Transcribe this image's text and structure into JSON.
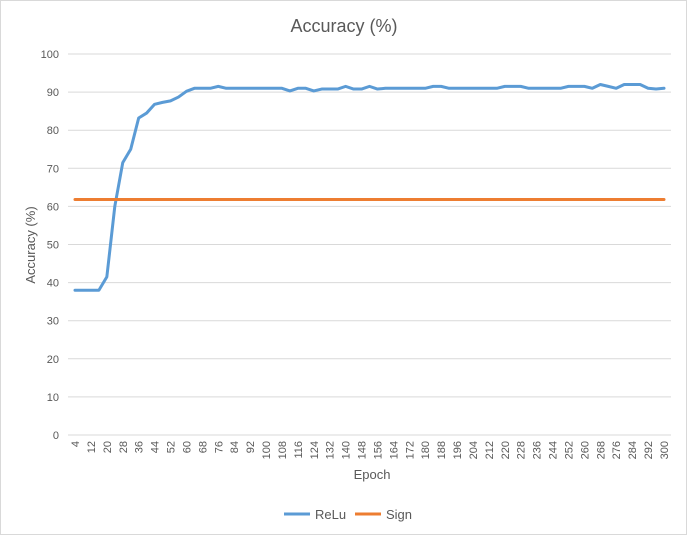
{
  "chart_data": {
    "type": "line",
    "title": "Accuracy (%)",
    "xlabel": "Epoch",
    "ylabel": "Accuracy (%)",
    "ylim": [
      0,
      100
    ],
    "yticks": [
      "0",
      "10",
      "20",
      "30",
      "40",
      "50",
      "60",
      "70",
      "80",
      "90",
      "100"
    ],
    "grid": true,
    "legend_position": "bottom",
    "x": [
      4,
      8,
      12,
      16,
      20,
      24,
      28,
      32,
      36,
      40,
      44,
      48,
      52,
      56,
      60,
      64,
      68,
      72,
      76,
      80,
      84,
      88,
      92,
      96,
      100,
      104,
      108,
      112,
      116,
      120,
      124,
      128,
      132,
      136,
      140,
      144,
      148,
      152,
      156,
      160,
      164,
      168,
      172,
      176,
      180,
      184,
      188,
      192,
      196,
      200,
      204,
      208,
      212,
      216,
      220,
      224,
      228,
      232,
      236,
      240,
      244,
      248,
      252,
      256,
      260,
      264,
      268,
      272,
      276,
      280,
      284,
      288,
      292,
      296,
      300
    ],
    "xtick_labels": [
      "4",
      "12",
      "20",
      "28",
      "36",
      "44",
      "52",
      "60",
      "68",
      "76",
      "84",
      "92",
      "100",
      "108",
      "116",
      "124",
      "132",
      "140",
      "148",
      "156",
      "164",
      "172",
      "180",
      "188",
      "196",
      "204",
      "212",
      "220",
      "228",
      "236",
      "244",
      "252",
      "260",
      "268",
      "276",
      "284",
      "292",
      "300"
    ],
    "series": [
      {
        "name": "ReLu",
        "color": "#5b9bd5",
        "values": [
          38,
          38,
          38,
          38,
          41.5,
          60,
          71.5,
          75,
          83.2,
          84.5,
          86.8,
          87.3,
          87.7,
          88.7,
          90.2,
          91,
          91,
          91,
          91.5,
          91,
          91,
          91,
          91,
          91,
          91,
          91,
          91,
          90.3,
          91,
          91,
          90.3,
          90.8,
          90.8,
          90.8,
          91.5,
          90.8,
          90.8,
          91.5,
          90.8,
          91,
          91,
          91,
          91,
          91,
          91,
          91.5,
          91.5,
          91,
          91,
          91,
          91,
          91,
          91,
          91,
          91.5,
          91.5,
          91.5,
          91,
          91,
          91,
          91,
          91,
          91.5,
          91.5,
          91.5,
          91,
          92,
          91.5,
          91,
          92,
          92,
          92,
          91,
          90.8,
          91
        ]
      },
      {
        "name": "Sign",
        "color": "#ed7d31",
        "values": [
          61.8,
          61.8,
          61.8,
          61.8,
          61.8,
          61.8,
          61.8,
          61.8,
          61.8,
          61.8,
          61.8,
          61.8,
          61.8,
          61.8,
          61.8,
          61.8,
          61.8,
          61.8,
          61.8,
          61.8,
          61.8,
          61.8,
          61.8,
          61.8,
          61.8,
          61.8,
          61.8,
          61.8,
          61.8,
          61.8,
          61.8,
          61.8,
          61.8,
          61.8,
          61.8,
          61.8,
          61.8,
          61.8,
          61.8,
          61.8,
          61.8,
          61.8,
          61.8,
          61.8,
          61.8,
          61.8,
          61.8,
          61.8,
          61.8,
          61.8,
          61.8,
          61.8,
          61.8,
          61.8,
          61.8,
          61.8,
          61.8,
          61.8,
          61.8,
          61.8,
          61.8,
          61.8,
          61.8,
          61.8,
          61.8,
          61.8,
          61.8,
          61.8,
          61.8,
          61.8,
          61.8,
          61.8,
          61.8,
          61.8,
          61.8
        ]
      }
    ]
  }
}
